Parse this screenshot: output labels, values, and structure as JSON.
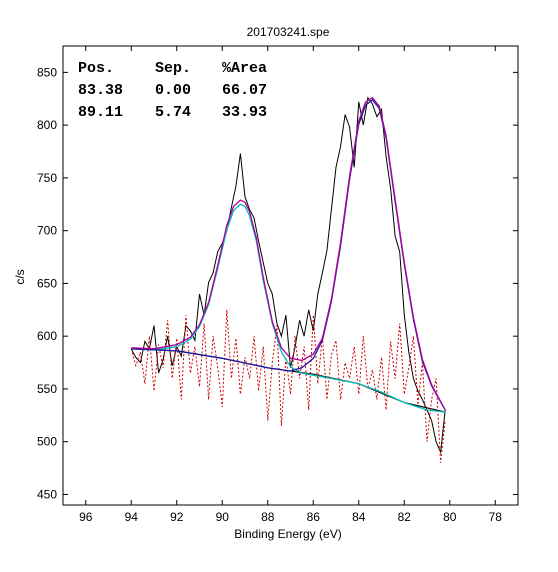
{
  "chart_data": {
    "type": "line",
    "title": "201703241.spe",
    "xlabel": "Binding Energy (eV)",
    "ylabel": "c/s",
    "xlim": [
      97,
      77
    ],
    "ylim": [
      440,
      875
    ],
    "x_reversed": true,
    "grid": false,
    "x_ticks": [
      96,
      94,
      92,
      90,
      88,
      86,
      84,
      82,
      80,
      78
    ],
    "y_ticks": [
      450,
      500,
      550,
      600,
      650,
      700,
      750,
      800,
      850
    ],
    "fit_table": {
      "headers": [
        "Pos.",
        "Sep.",
        "%Area"
      ],
      "rows": [
        [
          "83.38",
          "0.00",
          "66.07"
        ],
        [
          "89.11",
          "5.74",
          "33.93"
        ]
      ]
    },
    "peaks": [
      {
        "position": 83.38,
        "separation": 0.0,
        "area_percent": 66.07,
        "height": 258,
        "fwhm": 2.6
      },
      {
        "position": 89.11,
        "separation": 5.74,
        "area_percent": 33.93,
        "height": 155,
        "fwhm": 2.3
      }
    ],
    "background": {
      "x": [
        94.0,
        92.0,
        90.0,
        88.0,
        86.0,
        84.0,
        82.0,
        80.2
      ],
      "y": [
        588,
        586,
        579,
        570,
        564,
        555,
        537,
        528
      ]
    },
    "series": [
      {
        "color": "#000000",
        "x": [
          94.0,
          93.8,
          93.6,
          93.4,
          93.2,
          93.0,
          92.8,
          92.6,
          92.4,
          92.2,
          92.0,
          91.8,
          91.6,
          91.4,
          91.2,
          91.0,
          90.8,
          90.6,
          90.4,
          90.2,
          90.0,
          89.8,
          89.6,
          89.4,
          89.2,
          89.0,
          88.8,
          88.6,
          88.4,
          88.2,
          88.0,
          87.8,
          87.6,
          87.4,
          87.2,
          87.0,
          86.8,
          86.6,
          86.4,
          86.2,
          86.0,
          85.8,
          85.6,
          85.4,
          85.2,
          85.0,
          84.8,
          84.6,
          84.4,
          84.2,
          84.0,
          83.8,
          83.6,
          83.4,
          83.2,
          83.0,
          82.8,
          82.6,
          82.4,
          82.2,
          82.0,
          81.8,
          81.6,
          81.4,
          81.2,
          81.0,
          80.8,
          80.6,
          80.4,
          80.2
        ],
        "y": [
          588,
          580,
          575,
          595,
          588,
          610,
          565,
          578,
          600,
          572,
          590,
          581,
          610,
          605,
          596,
          640,
          620,
          651,
          660,
          680,
          688,
          700,
          722,
          742,
          773,
          732,
          720,
          712,
          690,
          670,
          650,
          640,
          612,
          600,
          620,
          570,
          590,
          615,
          600,
          625,
          605,
          640,
          660,
          681,
          720,
          760,
          780,
          810,
          798,
          760,
          822,
          800,
          826,
          820,
          808,
          815,
          770,
          740,
          695,
          680,
          620,
          585,
          560,
          548,
          540,
          530,
          520,
          500,
          490,
          530
        ]
      },
      {
        "color": "#cc0000",
        "dashed": true,
        "x": [
          94.0,
          93.8,
          93.6,
          93.4,
          93.2,
          93.0,
          92.8,
          92.6,
          92.4,
          92.2,
          92.0,
          91.8,
          91.6,
          91.4,
          91.2,
          91.0,
          90.8,
          90.6,
          90.4,
          90.2,
          90.0,
          89.8,
          89.6,
          89.4,
          89.2,
          89.0,
          88.8,
          88.6,
          88.4,
          88.2,
          88.0,
          87.8,
          87.6,
          87.4,
          87.2,
          87.0,
          86.8,
          86.6,
          86.4,
          86.2,
          86.0,
          85.8,
          85.6,
          85.4,
          85.2,
          85.0,
          84.8,
          84.6,
          84.4,
          84.2,
          84.0,
          83.8,
          83.6,
          83.4,
          83.2,
          83.0,
          82.8,
          82.6,
          82.4,
          82.2,
          82.0,
          81.8,
          81.6,
          81.4,
          81.2,
          81.0,
          80.8,
          80.6,
          80.4,
          80.2
        ],
        "y": [
          588,
          572,
          585,
          555,
          600,
          548,
          592,
          570,
          615,
          560,
          598,
          540,
          620,
          565,
          590,
          552,
          612,
          540,
          600,
          570,
          533,
          625,
          560,
          598,
          545,
          580,
          560,
          600,
          548,
          590,
          520,
          575,
          610,
          515,
          580,
          545,
          600,
          560,
          590,
          530,
          620,
          555,
          600,
          540,
          582,
          596,
          540,
          575,
          560,
          590,
          545,
          600,
          550,
          568,
          540,
          580,
          530,
          595,
          560,
          612,
          545,
          570,
          600,
          535,
          575,
          500,
          540,
          560,
          480,
          520
        ]
      },
      {
        "color": "#00bfbf",
        "x": [
          94.0,
          93.0,
          92.0,
          91.4,
          91.0,
          90.6,
          90.2,
          89.8,
          89.5,
          89.2,
          89.0,
          88.8,
          88.5,
          88.2,
          87.8,
          87.4,
          87.0,
          86.5,
          86.0,
          85.0,
          84.0,
          83.0,
          82.0,
          81.0,
          80.2
        ],
        "y": [
          588,
          587,
          590,
          597,
          609,
          630,
          664,
          701,
          719,
          725,
          723,
          714,
          690,
          653,
          612,
          585,
          571,
          565,
          563,
          559,
          555,
          547,
          537,
          530,
          528
        ]
      },
      {
        "color": "#1a1aa6",
        "x": [
          94.0,
          92.0,
          90.0,
          88.0,
          87.0,
          86.5,
          86.0,
          85.6,
          85.2,
          84.8,
          84.4,
          84.0,
          83.7,
          83.4,
          83.1,
          82.8,
          82.4,
          82.0,
          81.6,
          81.2,
          80.8,
          80.2
        ],
        "y": [
          588,
          586,
          579,
          570,
          567,
          570,
          579,
          596,
          633,
          686,
          749,
          801,
          819,
          824,
          816,
          788,
          728,
          668,
          616,
          576,
          553,
          530
        ]
      },
      {
        "color": "#b0009a",
        "x": [
          94.0,
          93.0,
          92.0,
          91.4,
          91.0,
          90.6,
          90.2,
          89.8,
          89.5,
          89.2,
          89.0,
          88.8,
          88.5,
          88.2,
          87.8,
          87.4,
          87.0,
          86.5,
          86.0,
          85.6,
          85.2,
          84.8,
          84.4,
          84.0,
          83.7,
          83.4,
          83.1,
          82.8,
          82.4,
          82.0,
          81.6,
          81.2,
          80.8,
          80.2
        ],
        "y": [
          589,
          588,
          592,
          599,
          611,
          632,
          667,
          705,
          723,
          729,
          727,
          718,
          693,
          656,
          614,
          589,
          579,
          577,
          583,
          598,
          635,
          689,
          752,
          804,
          822,
          826,
          818,
          790,
          730,
          670,
          618,
          578,
          554,
          530
        ]
      }
    ]
  }
}
